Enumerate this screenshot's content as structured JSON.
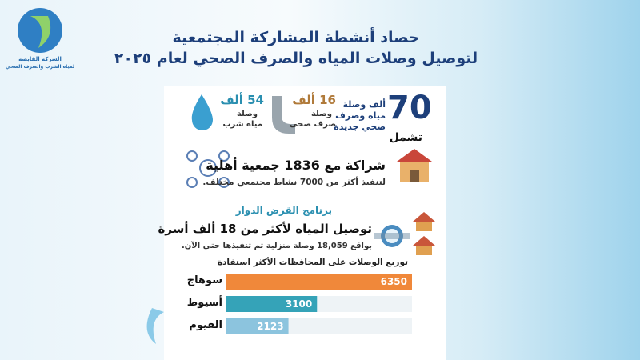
{
  "logo": {
    "line1": "الشركة القابضة",
    "line2": "لمياه الشرب والصرف الصحي"
  },
  "header": {
    "title_line1": "حصاد أنشطة المشاركة المجتمعية",
    "title_line2": "لتوصيل وصلات المياه والصرف الصحي لعام ٢٠٢٥"
  },
  "connections": {
    "total": 70,
    "total_unit": "ألف وصلة",
    "total_desc1": "مياه وصرف",
    "total_desc2": "صحي جديدة",
    "includes": "تشمل",
    "sewage": "16 ألف",
    "sewage_unit": "وصلة",
    "sewage_desc": "صرف صحى",
    "water": "54 ألف",
    "water_unit": "وصلة",
    "water_desc": "مياه شرب"
  },
  "partnership": {
    "headline": "شراكة مع 1836 جمعية أهلية",
    "detail": "لتنفيذ أكثر من 7000 نشاط مجتمعي مختلف."
  },
  "loan": {
    "program": "برنامج القرض الدوار",
    "headline": "توصيل المياه لأكثر من 18 ألف أسرة",
    "detail": "بواقع 18,059 وصلة منزلية تم تنفيذها حتى الآن."
  },
  "chart_data": {
    "type": "bar",
    "title": "توزيع الوصلات على المحافظات الأكثر استفادة",
    "categories": [
      "سوهاج",
      "أسيوط",
      "الفيوم"
    ],
    "values": [
      6350,
      3100,
      2123
    ],
    "colors": [
      "#f0883a",
      "#35a3b8",
      "#8cc4de"
    ]
  }
}
